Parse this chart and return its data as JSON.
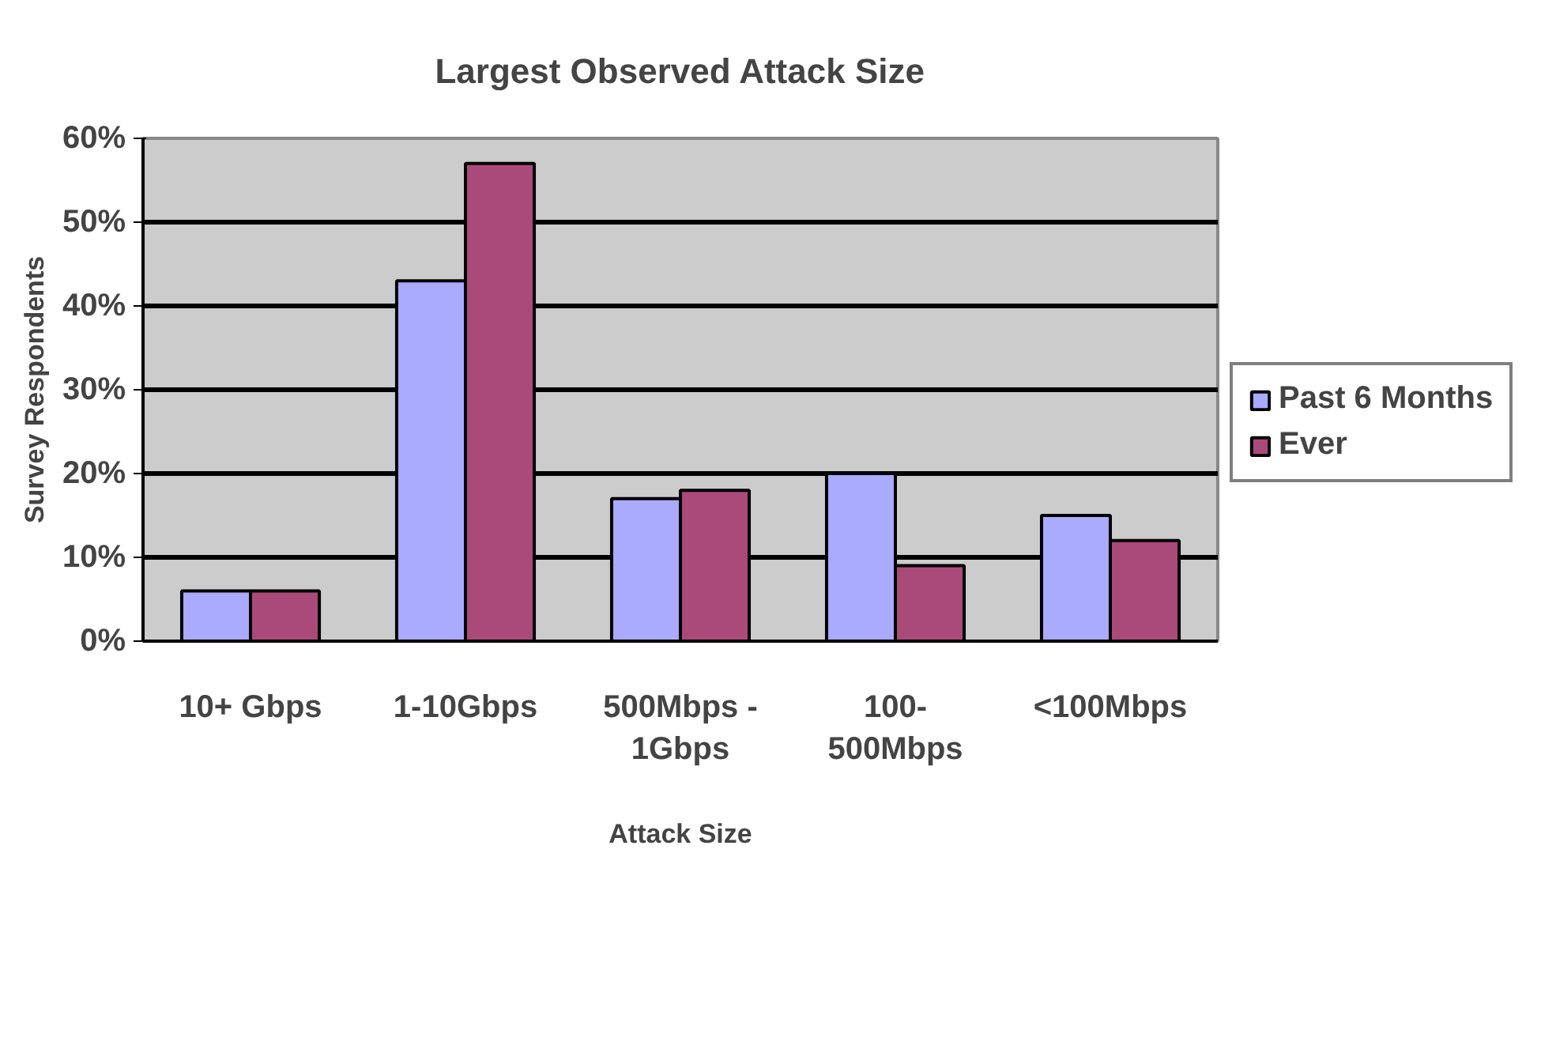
{
  "chart_data": {
    "type": "bar",
    "title": "Largest Observed Attack Size",
    "xlabel": "Attack Size",
    "ylabel": "Survey Respondents",
    "categories": [
      "10+ Gbps",
      "1-10Gbps",
      "500Mbps -\n1Gbps",
      "100-\n500Mbps",
      "<100Mbps"
    ],
    "series": [
      {
        "name": "Past 6 Months",
        "color": "#aaaaff",
        "values": [
          6,
          43,
          17,
          20,
          15
        ]
      },
      {
        "name": "Ever",
        "color": "#aa4a78",
        "values": [
          6,
          57,
          18,
          9,
          12
        ]
      }
    ],
    "ylim": [
      0,
      60
    ],
    "yticks": [
      {
        "value": 0,
        "label": "0%"
      },
      {
        "value": 10,
        "label": "10%"
      },
      {
        "value": 20,
        "label": "20%"
      },
      {
        "value": 30,
        "label": "30%"
      },
      {
        "value": 40,
        "label": "40%"
      },
      {
        "value": 50,
        "label": "50%"
      },
      {
        "value": 60,
        "label": "60%"
      }
    ],
    "grid": "y",
    "legend": "right"
  }
}
